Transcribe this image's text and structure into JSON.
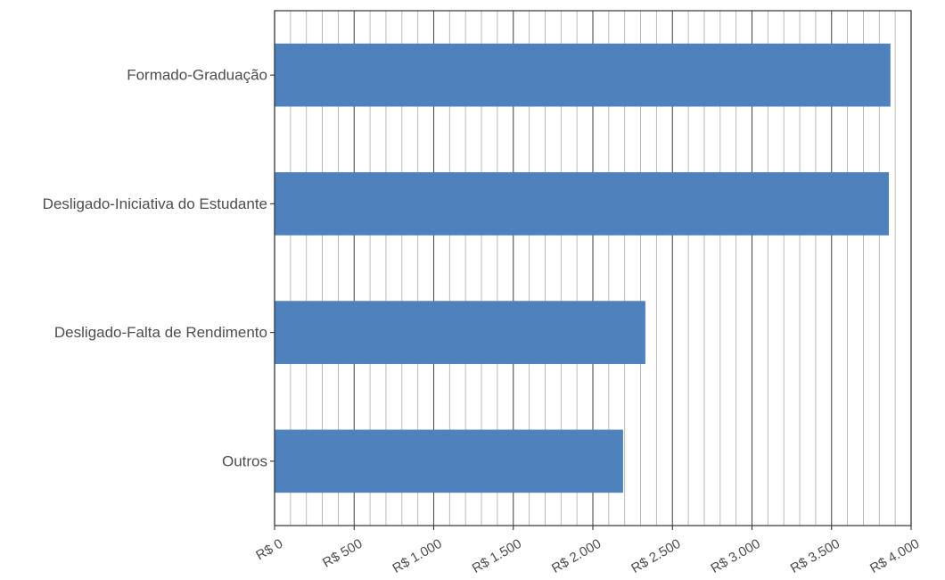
{
  "chart_data": {
    "type": "bar",
    "orientation": "horizontal",
    "categories": [
      "Formado-Graduação",
      "Desligado-Iniciativa do Estudante",
      "Desligado-Falta de Rendimento",
      "Outros"
    ],
    "values": [
      3870,
      3860,
      2330,
      2190
    ],
    "xlim": [
      0,
      4000
    ],
    "x_ticks": [
      0,
      500,
      1000,
      1500,
      2000,
      2500,
      3000,
      3500,
      4000
    ],
    "x_tick_labels": [
      "R$ 0",
      "R$ 500",
      "R$ 1.000",
      "R$ 1.500",
      "R$ 2.000",
      "R$ 2.500",
      "R$ 3.000",
      "R$ 3.500",
      "R$ 4.000"
    ],
    "minor_grid_step": 100,
    "grid": true,
    "title": "",
    "xlabel": "",
    "ylabel": "",
    "bar_color": "#4f81bd",
    "major_grid_color": "#4d4d4d",
    "minor_grid_color": "#b3b3b3"
  }
}
